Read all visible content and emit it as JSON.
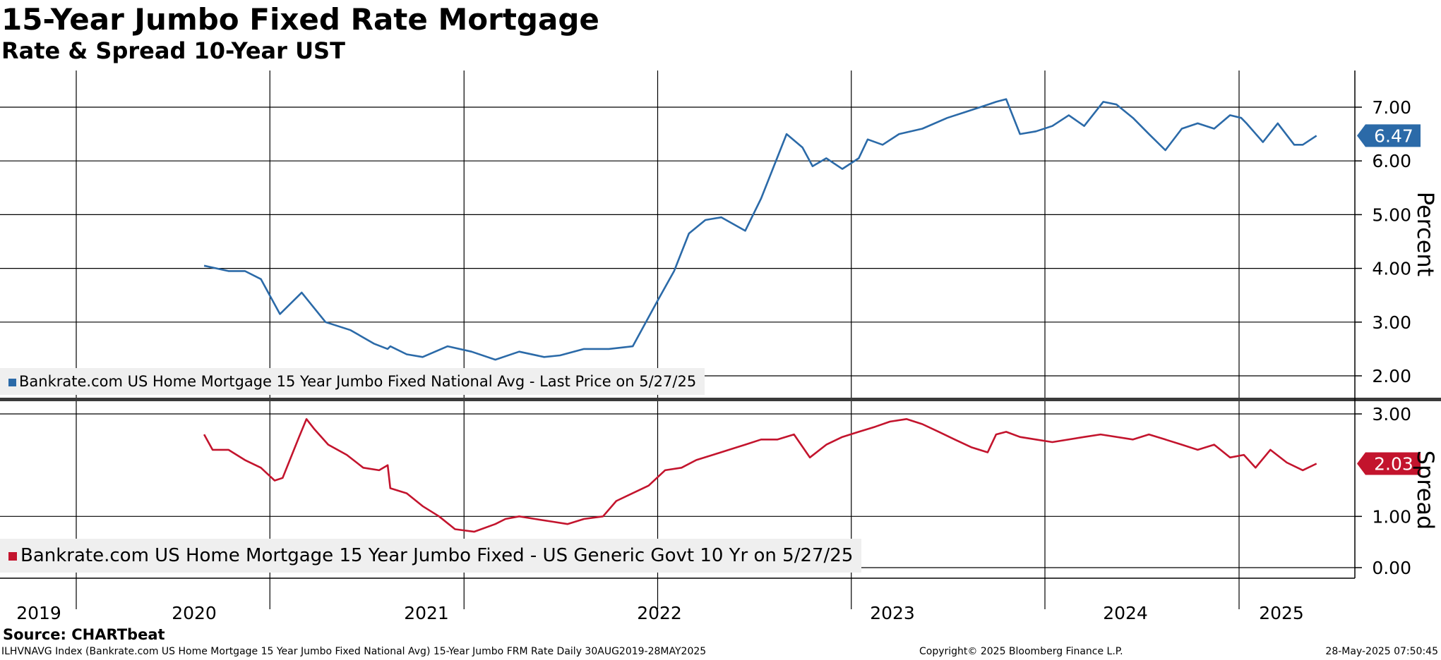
{
  "header": {
    "title": "15-Year Jumbo Fixed Rate Mortgage",
    "subtitle": "Rate & Spread 10-Year UST"
  },
  "chart_data": [
    {
      "type": "line",
      "title": "15-Year Jumbo Fixed Rate Mortgage",
      "subtitle": "Rate & Spread 10-Year UST",
      "ylabel": "Percent",
      "ylim": [
        1.85,
        7.65
      ],
      "yticks": [
        "2.00",
        "3.00",
        "4.00",
        "5.00",
        "6.00",
        "7.00"
      ],
      "grid": true,
      "legend_position": "bottom-left",
      "last_value_label": "6.47",
      "series": [
        {
          "name": "Bankrate.com US Home Mortgage 15 Year Jumbo Fixed National Avg - Last Price on 5/27/25",
          "color": "#2b6aa8",
          "x": [
            "2019-08-30",
            "2019-10-15",
            "2019-11-15",
            "2019-12-15",
            "2020-01-20",
            "2020-03-01",
            "2020-04-15",
            "2020-06-01",
            "2020-07-15",
            "2020-08-10",
            "2020-08-15",
            "2020-09-15",
            "2020-10-15",
            "2020-12-01",
            "2021-01-15",
            "2021-03-01",
            "2021-04-15",
            "2021-06-01",
            "2021-07-01",
            "2021-08-15",
            "2021-10-01",
            "2021-11-15",
            "2022-01-01",
            "2022-02-01",
            "2022-03-01",
            "2022-04-01",
            "2022-05-01",
            "2022-06-15",
            "2022-07-15",
            "2022-09-01",
            "2022-10-01",
            "2022-10-20",
            "2022-11-15",
            "2022-12-15",
            "2023-01-15",
            "2023-02-01",
            "2023-03-01",
            "2023-04-01",
            "2023-05-15",
            "2023-07-01",
            "2023-08-01",
            "2023-09-01",
            "2023-10-01",
            "2023-10-20",
            "2023-11-15",
            "2023-12-15",
            "2024-01-15",
            "2024-02-15",
            "2024-03-15",
            "2024-04-20",
            "2024-05-15",
            "2024-06-15",
            "2024-07-15",
            "2024-08-15",
            "2024-09-15",
            "2024-10-15",
            "2024-11-15",
            "2024-12-15",
            "2025-01-05",
            "2025-01-15",
            "2025-02-15",
            "2025-03-15",
            "2025-04-15",
            "2025-05-01",
            "2025-05-27"
          ],
          "values": [
            4.05,
            3.95,
            3.95,
            3.8,
            3.15,
            3.55,
            3.0,
            2.85,
            2.6,
            2.5,
            2.55,
            2.4,
            2.35,
            2.55,
            2.45,
            2.3,
            2.45,
            2.35,
            2.38,
            2.5,
            2.5,
            2.55,
            3.4,
            3.95,
            4.65,
            4.9,
            4.95,
            4.7,
            5.3,
            6.5,
            6.25,
            5.9,
            6.05,
            5.85,
            6.05,
            6.4,
            6.3,
            6.5,
            6.6,
            6.8,
            6.9,
            7.0,
            7.1,
            7.15,
            6.5,
            6.55,
            6.65,
            6.85,
            6.65,
            7.1,
            7.05,
            6.8,
            6.5,
            6.2,
            6.6,
            6.7,
            6.6,
            6.85,
            6.8,
            6.7,
            6.35,
            6.7,
            6.3,
            6.3,
            6.47
          ]
        }
      ]
    },
    {
      "type": "line",
      "ylabel": "Spread",
      "ylim": [
        -0.1,
        3.1
      ],
      "yticks": [
        "0.00",
        "1.00",
        "3.00"
      ],
      "grid": true,
      "legend_position": "bottom-left",
      "last_value_label": "2.03",
      "x_axis_labels": [
        "2019",
        "2020",
        "2021",
        "2022",
        "2023",
        "2024",
        "2025"
      ],
      "series": [
        {
          "name": "Bankrate.com US Home Mortgage 15 Year Jumbo Fixed - US Generic Govt 10 Yr on 5/27/25",
          "color": "#c3142d",
          "x": [
            "2019-08-30",
            "2019-09-15",
            "2019-10-15",
            "2019-11-15",
            "2019-12-15",
            "2020-01-10",
            "2020-01-25",
            "2020-02-25",
            "2020-03-10",
            "2020-03-25",
            "2020-04-20",
            "2020-05-25",
            "2020-06-25",
            "2020-07-25",
            "2020-08-10",
            "2020-08-15",
            "2020-09-15",
            "2020-10-15",
            "2020-11-15",
            "2020-12-15",
            "2021-01-20",
            "2021-03-01",
            "2021-03-20",
            "2021-04-15",
            "2021-05-15",
            "2021-06-15",
            "2021-07-15",
            "2021-08-15",
            "2021-09-20",
            "2021-10-15",
            "2021-12-15",
            "2022-01-15",
            "2022-02-15",
            "2022-03-15",
            "2022-04-15",
            "2022-06-15",
            "2022-07-15",
            "2022-08-15",
            "2022-09-15",
            "2022-10-15",
            "2022-11-15",
            "2022-12-15",
            "2023-01-15",
            "2023-02-15",
            "2023-03-15",
            "2023-04-15",
            "2023-05-15",
            "2023-06-15",
            "2023-07-15",
            "2023-08-15",
            "2023-09-15",
            "2023-10-01",
            "2023-10-20",
            "2023-11-15",
            "2023-12-15",
            "2024-01-15",
            "2024-03-15",
            "2024-04-15",
            "2024-06-15",
            "2024-07-15",
            "2024-08-15",
            "2024-09-15",
            "2024-10-15",
            "2024-11-15",
            "2024-12-15",
            "2025-01-10",
            "2025-02-01",
            "2025-03-01",
            "2025-04-01",
            "2025-05-01",
            "2025-05-27"
          ],
          "values": [
            2.6,
            2.3,
            2.3,
            2.1,
            1.95,
            1.7,
            1.75,
            2.55,
            2.9,
            2.7,
            2.4,
            2.2,
            1.95,
            1.9,
            2.0,
            1.55,
            1.45,
            1.2,
            1.0,
            0.75,
            0.7,
            0.85,
            0.95,
            1.0,
            0.95,
            0.9,
            0.85,
            0.95,
            1.0,
            1.3,
            1.6,
            1.9,
            1.95,
            2.1,
            2.2,
            2.4,
            2.5,
            2.5,
            2.6,
            2.15,
            2.4,
            2.55,
            2.65,
            2.75,
            2.85,
            2.9,
            2.8,
            2.65,
            2.5,
            2.35,
            2.25,
            2.6,
            2.65,
            2.55,
            2.5,
            2.45,
            2.55,
            2.6,
            2.5,
            2.6,
            2.5,
            2.4,
            2.3,
            2.4,
            2.15,
            2.2,
            1.95,
            2.3,
            2.05,
            1.9,
            2.03
          ]
        }
      ]
    }
  ],
  "footer": {
    "source": "Source: CHARTbeat",
    "meta": "ILHVNAVG Index (Bankrate.com US Home Mortgage 15 Year Jumbo Fixed National Avg) 15-Year Jumbo FRM Rate  Daily 30AUG2019-28MAY2025",
    "copyright": "Copyright© 2025 Bloomberg Finance L.P.",
    "timestamp": "28-May-2025 07:50:45"
  }
}
